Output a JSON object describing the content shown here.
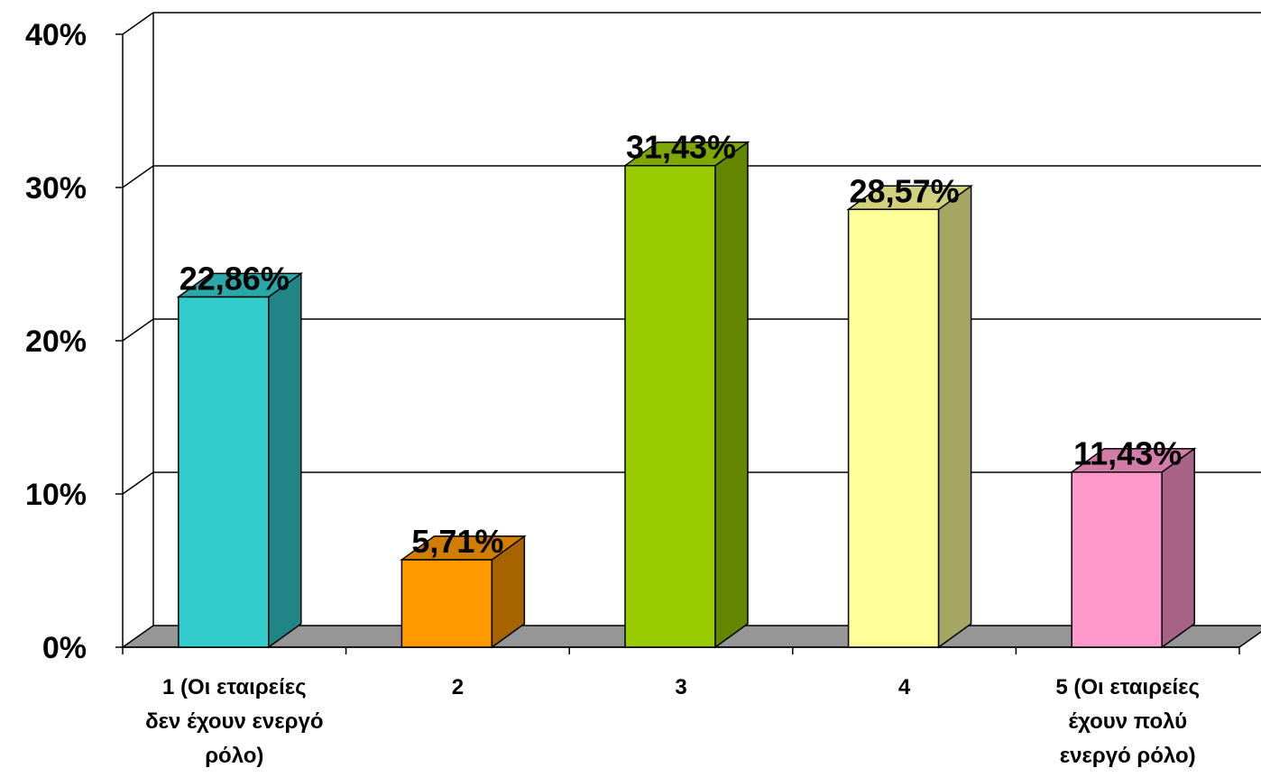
{
  "chart_data": {
    "type": "bar",
    "categories": [
      [
        "1 (Οι εταιρείες",
        "δεν έχουν ενεργό",
        "ρόλο)"
      ],
      [
        "2"
      ],
      [
        "3"
      ],
      [
        "4"
      ],
      [
        "5 (Οι εταιρείες",
        "έχουν πολύ",
        "ενεργό ρόλο)"
      ]
    ],
    "values": [
      22.86,
      5.71,
      31.43,
      28.57,
      11.43
    ],
    "data_labels": [
      "22,86%",
      "5,71%",
      "31,43%",
      "28,57%",
      "11,43%"
    ],
    "y_ticks": [
      0,
      10,
      20,
      30,
      40
    ],
    "y_tick_labels": [
      "0%",
      "10%",
      "20%",
      "30%",
      "40%"
    ],
    "ylim": [
      0,
      40
    ],
    "grid": true,
    "legend": "none",
    "style": "3d-column",
    "colors": {
      "front": [
        "#33CCCC",
        "#FF9900",
        "#99CC00",
        "#FFFF99",
        "#FF99CC"
      ],
      "side": [
        "#218585",
        "#A66300",
        "#638500",
        "#A6A663",
        "#A66385"
      ],
      "top": [
        "#2AA8A8",
        "#D17D00",
        "#7DA800",
        "#D1D17D",
        "#D17DA8"
      ],
      "floor": "#969696"
    }
  }
}
